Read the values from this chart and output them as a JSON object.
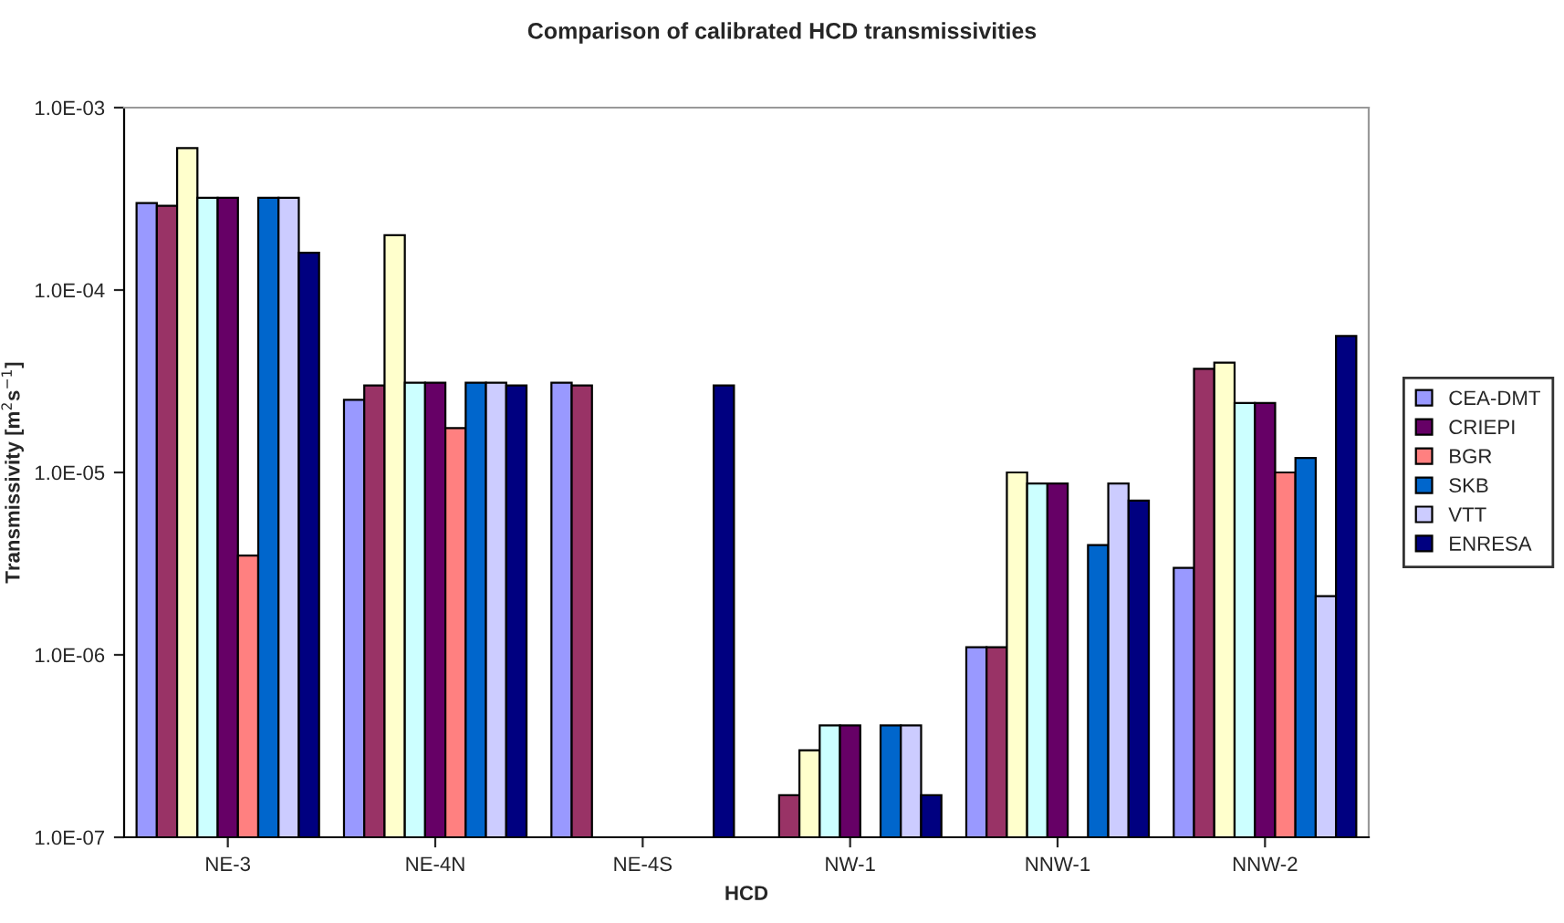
{
  "chart_data": {
    "type": "bar",
    "title": "Comparison of calibrated HCD transmissivities",
    "xlabel": "HCD",
    "ylabel": "Transmissivity [m$^{2}$s$^{−1}$]",
    "categories": [
      "NE-3",
      "NE-4N",
      "NE-4S",
      "NW-1",
      "NNW-1",
      "NNW-2"
    ],
    "log": true,
    "ylim": [
      1e-07,
      0.001
    ],
    "yticks": [
      {
        "value": 1e-07,
        "label": "1.0E-07"
      },
      {
        "value": 1e-06,
        "label": "1.0E-06"
      },
      {
        "value": 1e-05,
        "label": "1.0E-05"
      },
      {
        "value": 0.0001,
        "label": "1.0E-04"
      },
      {
        "value": 0.001,
        "label": "1.0E-03"
      }
    ],
    "grid": false,
    "legend": "right",
    "series": [
      {
        "name": "CEA-DMT",
        "color": "#9999ff",
        "values": [
          0.0003,
          2.5e-05,
          3.1e-05,
          null,
          1.1e-06,
          3e-06
        ]
      },
      {
        "color": "#993366",
        "values": [
          0.00029,
          3e-05,
          3e-05,
          1.7e-07,
          1.1e-06,
          3.7e-05
        ]
      },
      {
        "color": "#ffffcc",
        "values": [
          0.0006,
          0.0002,
          null,
          3e-07,
          1e-05,
          4e-05
        ]
      },
      {
        "color": "#ccffff",
        "values": [
          0.00032,
          3.1e-05,
          null,
          4.1e-07,
          8.7e-06,
          2.4e-05
        ]
      },
      {
        "name": "CRIEPI",
        "color": "#660066",
        "values": [
          0.00032,
          3.1e-05,
          null,
          4.1e-07,
          8.7e-06,
          2.4e-05
        ]
      },
      {
        "name": "BGR",
        "color": "#ff8080",
        "values": [
          3.5e-06,
          1.75e-05,
          null,
          null,
          null,
          1e-05
        ]
      },
      {
        "name": "SKB",
        "color": "#0066cc",
        "values": [
          0.00032,
          3.1e-05,
          null,
          4.1e-07,
          4e-06,
          1.2e-05
        ]
      },
      {
        "name": "VTT",
        "color": "#ccccff",
        "values": [
          0.00032,
          3.1e-05,
          null,
          4.1e-07,
          8.7e-06,
          2.1e-06
        ]
      },
      {
        "name": "ENRESA",
        "color": "#000080",
        "values": [
          0.00016,
          3e-05,
          3e-05,
          1.7e-07,
          7e-06,
          5.6e-05
        ]
      }
    ]
  }
}
